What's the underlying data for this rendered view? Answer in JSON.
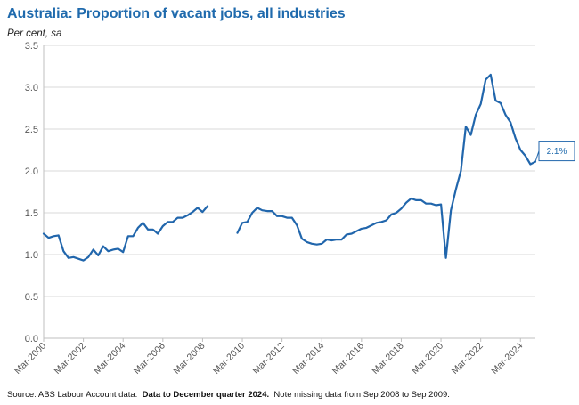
{
  "title": "Australia: Proportion of vacant jobs, all industries",
  "units_label": "Per cent, sa",
  "footnote": {
    "source": "Source: ABS Labour Account data.",
    "bold": "Data to December quarter 2024.",
    "note": "Note missing data from Sep 2008 to Sep 2009."
  },
  "callout": {
    "label": "2.1%",
    "value": 2.1
  },
  "colors": {
    "title": "#1f6aad",
    "line": "#2166ac",
    "grid": "#d9d9d9",
    "axis": "#bfbfbf"
  },
  "chart_data": {
    "type": "line",
    "xlabel": "",
    "ylabel": "Per cent, sa",
    "ylim": [
      0,
      3.5
    ],
    "yticks": [
      "0.0",
      "0.5",
      "1.0",
      "1.5",
      "2.0",
      "2.5",
      "3.0",
      "3.5"
    ],
    "xtick_labels": [
      "Mar-2000",
      "Mar-2002",
      "Mar-2004",
      "Mar-2006",
      "Mar-2008",
      "Mar-2010",
      "Mar-2012",
      "Mar-2014",
      "Mar-2016",
      "Mar-2018",
      "Mar-2020",
      "Mar-2022",
      "Mar-2024"
    ],
    "x_start": "Mar-2000",
    "x_end": "Dec-2024",
    "grid": true,
    "series": [
      {
        "x_start": "Mar-2000",
        "values": [
          1.25,
          1.2,
          1.22,
          1.23,
          1.04,
          0.96,
          0.97,
          0.95,
          0.93,
          0.97,
          1.06,
          0.99,
          1.1,
          1.04,
          1.06,
          1.07,
          1.03,
          1.22,
          1.22,
          1.32,
          1.38,
          1.3,
          1.3,
          1.25,
          1.34,
          1.39,
          1.39,
          1.44,
          1.44,
          1.47,
          1.51,
          1.56,
          1.51,
          1.58
        ]
      },
      {
        "x_start": "Dec-2009",
        "values": [
          1.26,
          1.38,
          1.39,
          1.5,
          1.56,
          1.53,
          1.52,
          1.52,
          1.46,
          1.46,
          1.44,
          1.44,
          1.35,
          1.19,
          1.15,
          1.13,
          1.12,
          1.13,
          1.18,
          1.17,
          1.18,
          1.18,
          1.24,
          1.25,
          1.28,
          1.31,
          1.32,
          1.35,
          1.38,
          1.39,
          1.41,
          1.48,
          1.5,
          1.55,
          1.62,
          1.67,
          1.65,
          1.65,
          1.61,
          1.61,
          1.59,
          1.6,
          0.96,
          1.53,
          1.78,
          2.0,
          2.53,
          2.43,
          2.67,
          2.8,
          3.09,
          3.15,
          2.84,
          2.81,
          2.67,
          2.58,
          2.39,
          2.25,
          2.18,
          2.08,
          2.11
        ]
      }
    ]
  }
}
